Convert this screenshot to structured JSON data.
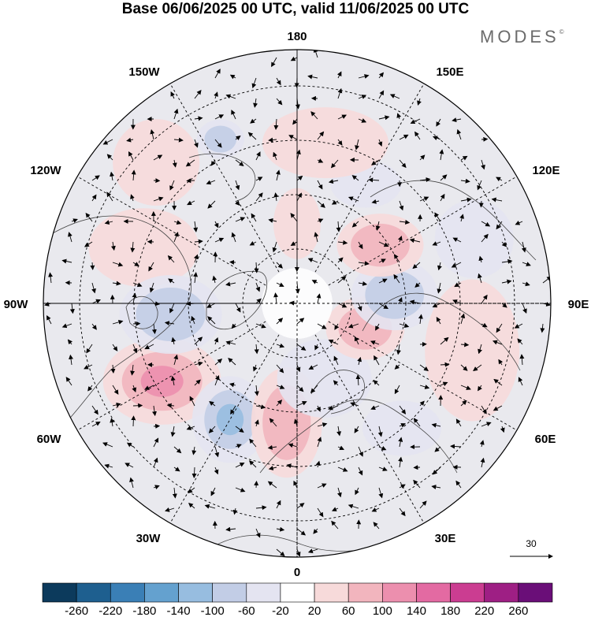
{
  "title": "Base 06/06/2025 00 UTC, valid 11/06/2025 00 UTC",
  "logo": {
    "text": "MODES",
    "mark": "©"
  },
  "longitude_labels": {
    "top": "180",
    "top_left": "150W",
    "top_right": "150E",
    "upper_left": "120W",
    "upper_right": "120E",
    "left": "90W",
    "right": "90E",
    "lower_left": "60W",
    "lower_right": "60E",
    "bottom_left": "30W",
    "bottom_right": "30E",
    "bottom": "0"
  },
  "reference_vector": {
    "label": "30"
  },
  "colorbar": {
    "colors": [
      "#0c3a5c",
      "#1e5f8f",
      "#3a7fb6",
      "#64a1cf",
      "#97bde0",
      "#c2cde6",
      "#e4e4f1",
      "#ffffff",
      "#f7dada",
      "#f2b5be",
      "#ec8fae",
      "#e36aa2",
      "#cb3d91",
      "#9e1f84",
      "#6a0e78"
    ],
    "ticks": [
      "-260",
      "-220",
      "-180",
      "-140",
      "-100",
      "-60",
      "-20",
      "20",
      "60",
      "100",
      "140",
      "180",
      "220",
      "260"
    ]
  },
  "anomalies": [
    {
      "lon": 300,
      "lat": 47,
      "sign": 1,
      "strength": 3,
      "rx": 75,
      "ry": 55
    },
    {
      "lon": 330,
      "lat": 53,
      "sign": -1,
      "strength": 3,
      "rx": 48,
      "ry": 55
    },
    {
      "lon": 355,
      "lat": 57,
      "sign": 1,
      "strength": 2,
      "rx": 45,
      "ry": 70
    },
    {
      "lon": 20,
      "lat": 68,
      "sign": -1,
      "strength": 1,
      "rx": 60,
      "ry": 50
    },
    {
      "lon": 70,
      "lat": 70,
      "sign": 1,
      "strength": 2,
      "rx": 50,
      "ry": 40
    },
    {
      "lon": 95,
      "lat": 63,
      "sign": -1,
      "strength": 2,
      "rx": 55,
      "ry": 45
    },
    {
      "lon": 125,
      "lat": 62,
      "sign": 1,
      "strength": 2,
      "rx": 55,
      "ry": 40
    },
    {
      "lon": 150,
      "lat": 52,
      "sign": -1,
      "strength": 1,
      "rx": 45,
      "ry": 30
    },
    {
      "lon": 170,
      "lat": 45,
      "sign": 1,
      "strength": 1,
      "rx": 80,
      "ry": 45
    },
    {
      "lon": 225,
      "lat": 35,
      "sign": 1,
      "strength": 1,
      "rx": 55,
      "ry": 55
    },
    {
      "lon": 250,
      "lat": 45,
      "sign": 1,
      "strength": 1,
      "rx": 70,
      "ry": 50
    },
    {
      "lon": 275,
      "lat": 55,
      "sign": -1,
      "strength": 2,
      "rx": 65,
      "ry": 50
    },
    {
      "lon": 180,
      "lat": 68,
      "sign": 1,
      "strength": 1,
      "rx": 30,
      "ry": 45
    },
    {
      "lon": 205,
      "lat": 40,
      "sign": -1,
      "strength": 2,
      "rx": 30,
      "ry": 25
    },
    {
      "lon": 75,
      "lat": 40,
      "sign": 1,
      "strength": 1,
      "rx": 60,
      "ry": 90
    },
    {
      "lon": 40,
      "lat": 45,
      "sign": -1,
      "strength": 1,
      "rx": 50,
      "ry": 35
    },
    {
      "lon": 110,
      "lat": 38,
      "sign": -1,
      "strength": 1,
      "rx": 50,
      "ry": 50
    }
  ]
}
